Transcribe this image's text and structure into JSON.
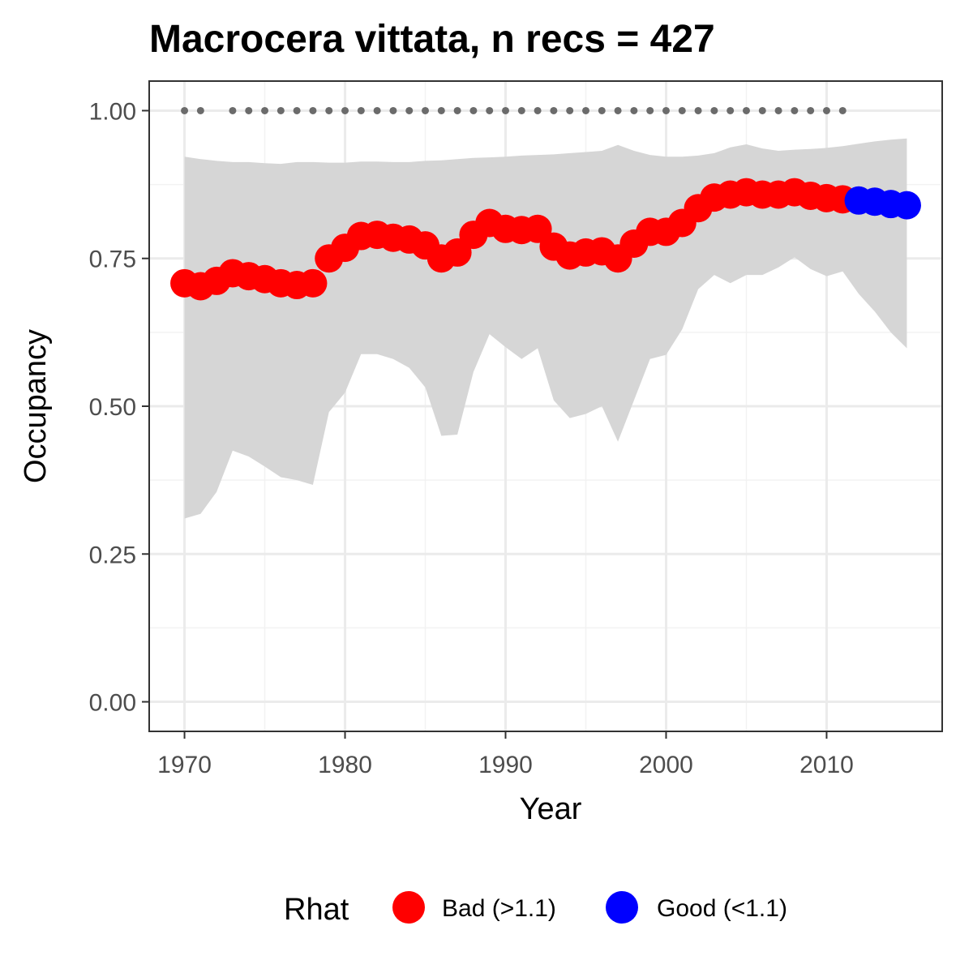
{
  "chart_data": {
    "type": "line",
    "title": "Macrocera vittata, n recs = 427",
    "xlabel": "Year",
    "ylabel": "Occupancy",
    "xlim": [
      1967.8,
      2017.2
    ],
    "ylim": [
      -0.05,
      1.05
    ],
    "x_ticks": [
      1970,
      1980,
      1990,
      2000,
      2010
    ],
    "x_tick_labels": [
      "1970",
      "1980",
      "1990",
      "2000",
      "2010"
    ],
    "y_ticks": [
      0,
      0.25,
      0.5,
      0.75,
      1.0
    ],
    "y_tick_labels": [
      "0.00",
      "0.25",
      "0.50",
      "0.75",
      "1.00"
    ],
    "grid": true,
    "legend": {
      "title": "Rhat",
      "position": "bottom",
      "entries": [
        {
          "label": "Bad (>1.1)",
          "color": "#FF0000"
        },
        {
          "label": "Good (<1.1)",
          "color": "#0000FF"
        }
      ]
    },
    "colors": {
      "bad": "#FF0000",
      "good": "#0000FF",
      "ribbon": "#D6D6D6",
      "record_dots": "#6B6B6B"
    },
    "x": [
      1970,
      1971,
      1972,
      1973,
      1974,
      1975,
      1976,
      1977,
      1978,
      1979,
      1980,
      1981,
      1982,
      1983,
      1984,
      1985,
      1986,
      1987,
      1988,
      1989,
      1990,
      1991,
      1992,
      1993,
      1994,
      1995,
      1996,
      1997,
      1998,
      1999,
      2000,
      2001,
      2002,
      2003,
      2004,
      2005,
      2006,
      2007,
      2008,
      2009,
      2010,
      2011,
      2012,
      2013,
      2014,
      2015
    ],
    "series": [
      {
        "values": [
          0.708,
          0.703,
          0.712,
          0.725,
          0.72,
          0.715,
          0.708,
          0.705,
          0.708,
          0.75,
          0.768,
          0.788,
          0.79,
          0.785,
          0.782,
          0.772,
          0.75,
          0.76,
          0.79,
          0.81,
          0.8,
          0.798,
          0.8,
          0.77,
          0.755,
          0.76,
          0.762,
          0.75,
          0.775,
          0.795,
          0.795,
          0.81,
          0.835,
          0.853,
          0.858,
          0.862,
          0.858,
          0.858,
          0.862,
          0.856,
          0.852,
          0.85,
          0.848,
          0.846,
          0.842,
          0.84
        ],
        "rhat": [
          "Bad",
          "Bad",
          "Bad",
          "Bad",
          "Bad",
          "Bad",
          "Bad",
          "Bad",
          "Bad",
          "Bad",
          "Bad",
          "Bad",
          "Bad",
          "Bad",
          "Bad",
          "Bad",
          "Bad",
          "Bad",
          "Bad",
          "Bad",
          "Bad",
          "Bad",
          "Bad",
          "Bad",
          "Bad",
          "Bad",
          "Bad",
          "Bad",
          "Bad",
          "Bad",
          "Bad",
          "Bad",
          "Bad",
          "Bad",
          "Bad",
          "Bad",
          "Bad",
          "Bad",
          "Bad",
          "Bad",
          "Bad",
          "Bad",
          "Good",
          "Good",
          "Good",
          "Good"
        ],
        "lower": [
          0.31,
          0.318,
          0.355,
          0.425,
          0.415,
          0.398,
          0.38,
          0.375,
          0.367,
          0.49,
          0.523,
          0.588,
          0.588,
          0.58,
          0.565,
          0.532,
          0.45,
          0.452,
          0.558,
          0.622,
          0.6,
          0.58,
          0.598,
          0.51,
          0.48,
          0.487,
          0.5,
          0.44,
          0.51,
          0.58,
          0.587,
          0.63,
          0.698,
          0.722,
          0.708,
          0.722,
          0.722,
          0.735,
          0.752,
          0.732,
          0.72,
          0.728,
          0.69,
          0.66,
          0.625,
          0.598
        ],
        "upper": [
          0.922,
          0.918,
          0.915,
          0.913,
          0.913,
          0.911,
          0.91,
          0.913,
          0.913,
          0.912,
          0.912,
          0.914,
          0.914,
          0.913,
          0.913,
          0.915,
          0.916,
          0.918,
          0.92,
          0.921,
          0.922,
          0.924,
          0.925,
          0.926,
          0.928,
          0.93,
          0.932,
          0.942,
          0.932,
          0.925,
          0.922,
          0.922,
          0.924,
          0.928,
          0.938,
          0.943,
          0.936,
          0.932,
          0.934,
          0.935,
          0.937,
          0.94,
          0.944,
          0.948,
          0.951,
          0.953
        ]
      }
    ],
    "record_years": [
      1970,
      1971,
      1973,
      1974,
      1975,
      1976,
      1977,
      1978,
      1979,
      1980,
      1981,
      1982,
      1983,
      1984,
      1985,
      1986,
      1987,
      1988,
      1989,
      1990,
      1991,
      1992,
      1993,
      1994,
      1995,
      1996,
      1997,
      1998,
      1999,
      2000,
      2001,
      2002,
      2003,
      2004,
      2005,
      2006,
      2007,
      2008,
      2009,
      2010,
      2011
    ],
    "record_value": 1.0
  }
}
